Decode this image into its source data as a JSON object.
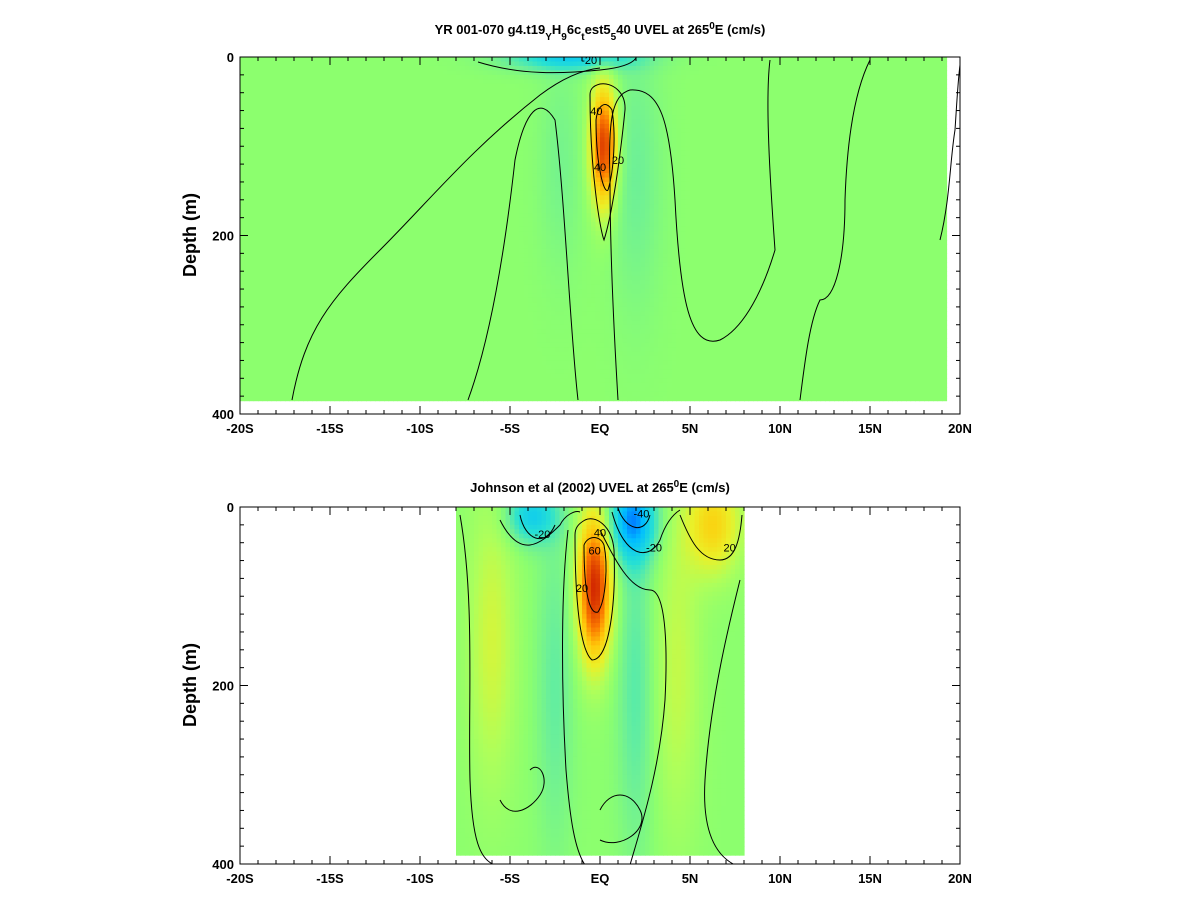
{
  "chart_data": [
    {
      "type": "heatmap",
      "title": {
        "prefix": "YR 001-070 g4.t19",
        "sub1": "Y",
        "mid1": "H",
        "sub2": "9",
        "mid2": "6c",
        "sub3": "t",
        "mid3": "est5",
        "sub4": "5",
        "mid4": "40 UVEL at 265",
        "sup": "0",
        "suffix": "E (cm/s)"
      },
      "ylabel": "Depth (m)",
      "xlim": [
        -20,
        20
      ],
      "ylim": [
        0,
        400
      ],
      "x_ticks": [
        {
          "value": -20,
          "label": "-20S"
        },
        {
          "value": -15,
          "label": "-15S"
        },
        {
          "value": -10,
          "label": "-10S"
        },
        {
          "value": -5,
          "label": "-5S"
        },
        {
          "value": 0,
          "label": "EQ"
        },
        {
          "value": 5,
          "label": "5N"
        },
        {
          "value": 10,
          "label": "10N"
        },
        {
          "value": 15,
          "label": "15N"
        },
        {
          "value": 20,
          "label": "20N"
        }
      ],
      "y_ticks": [
        {
          "value": 0,
          "label": "0"
        },
        {
          "value": 200,
          "label": "200"
        },
        {
          "value": 400,
          "label": "400"
        }
      ],
      "data_extent": {
        "lat": [
          -20,
          19.2
        ],
        "depth": [
          0,
          385
        ]
      },
      "features": [
        {
          "name": "EUC core",
          "lat": 0.2,
          "depth": 100,
          "lat_halfwidth": 0.7,
          "depth_halfwidth": 65,
          "value": 65
        },
        {
          "name": "surface westward flow",
          "lat": -1.5,
          "depth": 0,
          "lat_halfwidth": 3.5,
          "depth_halfwidth": 15,
          "value": -30
        },
        {
          "name": "south flank",
          "lat": -2.2,
          "depth": 120,
          "lat_halfwidth": 1.2,
          "depth_halfwidth": 120,
          "value": -6
        },
        {
          "name": "north flank",
          "lat": 2.0,
          "depth": 130,
          "lat_halfwidth": 1.4,
          "depth_halfwidth": 150,
          "value": -8
        }
      ],
      "contour_labels": [
        {
          "text": "-20",
          "lat": -0.6,
          "depth": 8
        },
        {
          "text": "40",
          "lat": -0.2,
          "depth": 65
        },
        {
          "text": "20",
          "lat": 1.0,
          "depth": 120
        },
        {
          "text": "40",
          "lat": 0.0,
          "depth": 128
        }
      ]
    },
    {
      "type": "heatmap",
      "title": {
        "prefix": "Johnson et al (2002) UVEL at 265",
        "sup": "0",
        "suffix": "E (cm/s)"
      },
      "ylabel": "Depth (m)",
      "xlim": [
        -20,
        20
      ],
      "ylim": [
        0,
        400
      ],
      "x_ticks": [
        {
          "value": -20,
          "label": "-20S"
        },
        {
          "value": -15,
          "label": "-15S"
        },
        {
          "value": -10,
          "label": "-10S"
        },
        {
          "value": -5,
          "label": "-5S"
        },
        {
          "value": 0,
          "label": "EQ"
        },
        {
          "value": 5,
          "label": "5N"
        },
        {
          "value": 10,
          "label": "10N"
        },
        {
          "value": 15,
          "label": "15N"
        },
        {
          "value": 20,
          "label": "20N"
        }
      ],
      "y_ticks": [
        {
          "value": 0,
          "label": "0"
        },
        {
          "value": 200,
          "label": "200"
        },
        {
          "value": 400,
          "label": "400"
        }
      ],
      "data_extent": {
        "lat": [
          -8,
          8
        ],
        "depth": [
          0,
          390
        ]
      },
      "features": [
        {
          "name": "EUC core",
          "lat": -0.3,
          "depth": 90,
          "lat_halfwidth": 0.9,
          "depth_halfwidth": 80,
          "value": 70
        },
        {
          "name": "north surface westward",
          "lat": 1.8,
          "depth": 15,
          "lat_halfwidth": 1.3,
          "depth_halfwidth": 45,
          "value": -45
        },
        {
          "name": "south surface westward",
          "lat": -3.8,
          "depth": 10,
          "lat_halfwidth": 1.4,
          "depth_halfwidth": 30,
          "value": -30
        },
        {
          "name": "NECC",
          "lat": 6.3,
          "depth": 20,
          "lat_halfwidth": 1.5,
          "depth_halfwidth": 55,
          "value": 30
        },
        {
          "name": "south subsurface eastward",
          "lat": -6.0,
          "depth": 150,
          "lat_halfwidth": 1.3,
          "depth_halfwidth": 160,
          "value": 15
        },
        {
          "name": "north subsurface eastward",
          "lat": 4.3,
          "depth": 180,
          "lat_halfwidth": 1.3,
          "depth_halfwidth": 180,
          "value": 12
        },
        {
          "name": "north flank",
          "lat": 2.0,
          "depth": 200,
          "lat_halfwidth": 1.0,
          "depth_halfwidth": 190,
          "value": -12
        },
        {
          "name": "south flank",
          "lat": -2.5,
          "depth": 200,
          "lat_halfwidth": 1.0,
          "depth_halfwidth": 180,
          "value": -10
        }
      ],
      "contour_labels": [
        {
          "text": "-20",
          "lat": -3.2,
          "depth": 35
        },
        {
          "text": "-40",
          "lat": 2.3,
          "depth": 12
        },
        {
          "text": "-20",
          "lat": 3.0,
          "depth": 50
        },
        {
          "text": "40",
          "lat": 0.0,
          "depth": 33
        },
        {
          "text": "60",
          "lat": -0.3,
          "depth": 53
        },
        {
          "text": "20",
          "lat": -1.0,
          "depth": 95
        },
        {
          "text": "20",
          "lat": 7.2,
          "depth": 50
        }
      ]
    }
  ]
}
